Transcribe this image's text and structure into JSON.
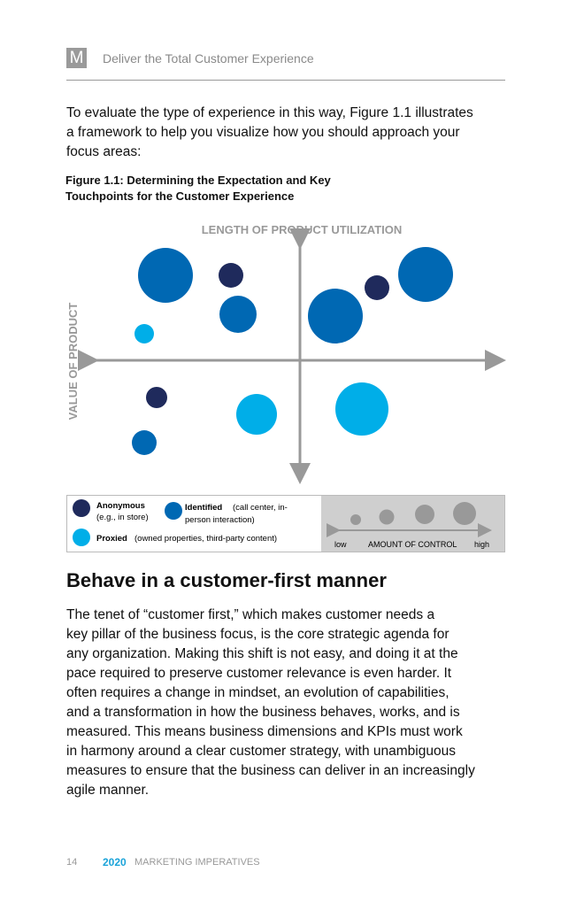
{
  "header": {
    "logo": "M",
    "title": "Deliver the Total Customer Experience"
  },
  "intro": [
    "To evaluate the type of experience in this way, Figure 1.1 illustrates",
    "a framework to help you visualize how you should approach your",
    "focus areas:"
  ],
  "figure": {
    "caption": [
      "Figure 1.1: Determining the Expectation and Key",
      "Touchpoints for the Customer Experience"
    ],
    "x_axis_label": "LENGTH OF PRODUCT UTILIZATION",
    "y_axis_label": "VALUE OF PRODUCT",
    "legend": {
      "anonymous": {
        "name": "Anonymous",
        "note": "(e.g., in store)"
      },
      "identified": {
        "name": "Identified",
        "note": [
          "(call center, in-",
          "person interaction)"
        ]
      },
      "proxied": {
        "name": "Proxied",
        "note": "(owned properties, third-party content)"
      },
      "control": {
        "low": "low",
        "label": "AMOUNT OF CONTROL",
        "high": "high"
      }
    }
  },
  "section": {
    "heading": "Behave in a customer-first manner",
    "body": [
      "The tenet of “customer first,” which makes customer needs a",
      "key pillar of the business focus, is the core strategic agenda for",
      "any organization. Making this shift is not easy, and doing it at the",
      "pace required to preserve customer relevance is even harder. It",
      "often requires a change in mindset, an evolution of capabilities,",
      "and a transformation in how the business behaves, works, and is",
      "measured. This means business dimensions and KPIs must work",
      "in harmony around a clear customer strategy, with unambiguous",
      "measures to ensure that the business can deliver in an increasingly",
      "agile manner."
    ]
  },
  "footer": {
    "page": "14",
    "year": "2020",
    "title": "MARKETING IMPERATIVES"
  }
}
